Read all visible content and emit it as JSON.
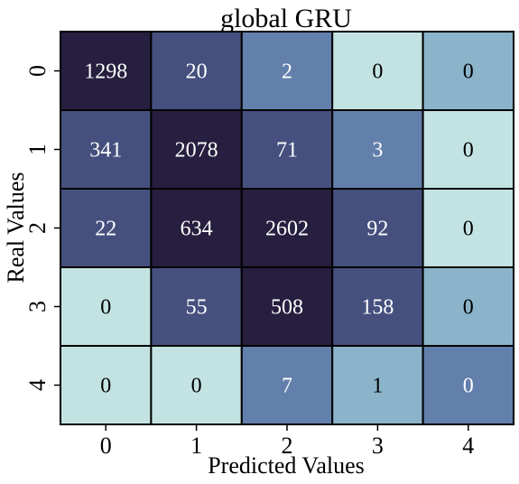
{
  "chart_data": {
    "type": "heatmap",
    "title": "global GRU",
    "xlabel": "Predicted Values",
    "ylabel": "Real Values",
    "x_categories": [
      "0",
      "1",
      "2",
      "3",
      "4"
    ],
    "y_categories": [
      "0",
      "1",
      "2",
      "3",
      "4"
    ],
    "values": [
      [
        1298,
        20,
        2,
        0,
        0
      ],
      [
        341,
        2078,
        71,
        3,
        0
      ],
      [
        22,
        634,
        2602,
        92,
        0
      ],
      [
        0,
        55,
        508,
        158,
        0
      ],
      [
        0,
        0,
        7,
        1,
        0
      ]
    ],
    "colorbar": false,
    "colors": {
      "darkest": "#271f3f",
      "dark": "#45507e",
      "mid": "#637fab",
      "light": "#8bb3c9",
      "lightest": "#c3e3e2",
      "text_light": "#ffffff",
      "text_dark": "#000000"
    }
  }
}
